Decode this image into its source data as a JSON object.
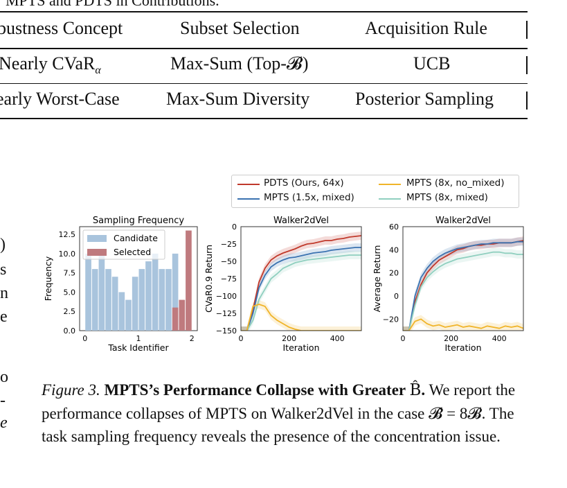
{
  "top_caption": "MPTS and PDTS in Contributions.",
  "table": {
    "headers": [
      "bustness Concept",
      "Subset Selection",
      "Acquisition Rule"
    ],
    "rows": [
      [
        "Nearly CVaR",
        "Max-Sum (Top-𝓑)",
        "UCB"
      ],
      [
        "early Worst-Case",
        "Max-Sum Diversity",
        "Posterior Sampling"
      ]
    ],
    "alpha": "α"
  },
  "left_margin_chars": [
    ")",
    "s",
    "n",
    "e",
    "o",
    "-",
    "e"
  ],
  "legend": {
    "items": [
      {
        "label": "PDTS (Ours, 64x)",
        "color": "#c0392b"
      },
      {
        "label": "MPTS (8x, no_mixed)",
        "color": "#f0b429"
      },
      {
        "label": "MPTS (1.5x, mixed)",
        "color": "#3a72b0"
      },
      {
        "label": "MPTS (8x, mixed)",
        "color": "#8fcfbf"
      }
    ]
  },
  "chart_data": [
    {
      "type": "bar",
      "title": "Sampling Frequency",
      "xlabel": "Task Identifier",
      "ylabel": "Frequency",
      "xlim": [
        0,
        2
      ],
      "ylim": [
        0,
        13
      ],
      "xticks": [
        "0",
        "1",
        "2"
      ],
      "yticks": [
        "0.0",
        "2.5",
        "5.0",
        "7.5",
        "10.0",
        "12.5"
      ],
      "legend": [
        "Candidate",
        "Selected"
      ],
      "legend_position": "top-left",
      "colors": {
        "candidate": "#a9c4dd",
        "selected": "#bf7a7e"
      },
      "candidate_values": [
        10,
        8,
        10,
        8,
        7,
        5,
        4,
        7,
        8,
        9,
        10,
        8,
        8,
        10,
        0,
        0
      ],
      "selected_values": [
        0,
        0,
        0,
        0,
        0,
        0,
        0,
        0,
        0,
        0,
        0,
        0,
        0,
        3,
        4,
        13
      ]
    },
    {
      "type": "line",
      "title": "Walker2dVel",
      "xlabel": "Iteration",
      "ylabel": "CVaR0.9 Return",
      "xlim": [
        0,
        500
      ],
      "ylim": [
        -150,
        0
      ],
      "xticks": [
        "0",
        "200",
        "400"
      ],
      "yticks": [
        "0",
        "−25",
        "−50",
        "−75",
        "−100",
        "−125",
        "−150"
      ],
      "x": [
        0,
        25,
        50,
        75,
        100,
        125,
        150,
        175,
        200,
        225,
        250,
        275,
        300,
        325,
        350,
        375,
        400,
        425,
        450,
        475,
        500
      ],
      "series": [
        {
          "name": "PDTS (Ours, 64x)",
          "values": [
            -150,
            -150,
            -120,
            -80,
            -60,
            -48,
            -42,
            -38,
            -35,
            -32,
            -28,
            -25,
            -24,
            -22,
            -20,
            -20,
            -18,
            -17,
            -15,
            -14,
            -13
          ]
        },
        {
          "name": "MPTS (1.5x, mixed)",
          "values": [
            -150,
            -150,
            -125,
            -88,
            -70,
            -58,
            -52,
            -48,
            -45,
            -44,
            -42,
            -40,
            -38,
            -37,
            -36,
            -34,
            -33,
            -32,
            -31,
            -30,
            -30
          ]
        },
        {
          "name": "MPTS (8x, mixed)",
          "values": [
            -150,
            -150,
            -135,
            -105,
            -90,
            -75,
            -68,
            -60,
            -56,
            -52,
            -50,
            -48,
            -47,
            -46,
            -45,
            -44,
            -43,
            -42,
            -41,
            -41,
            -41
          ]
        },
        {
          "name": "MPTS (8x, no_mixed)",
          "values": [
            -150,
            -150,
            -115,
            -112,
            -115,
            -128,
            -135,
            -140,
            -145,
            -148,
            -150,
            -150,
            -150,
            -150,
            -150,
            -150,
            -150,
            -150,
            -150,
            -150,
            -150
          ]
        }
      ]
    },
    {
      "type": "line",
      "title": "Walker2dVel",
      "xlabel": "Iteration",
      "ylabel": "Average Return",
      "xlim": [
        0,
        500
      ],
      "ylim": [
        -30,
        60
      ],
      "xticks": [
        "0",
        "200",
        "400"
      ],
      "yticks": [
        "60",
        "40",
        "20",
        "0",
        "−20"
      ],
      "x": [
        0,
        25,
        50,
        75,
        100,
        125,
        150,
        175,
        200,
        225,
        250,
        275,
        300,
        325,
        350,
        375,
        400,
        425,
        450,
        475,
        500
      ],
      "series": [
        {
          "name": "PDTS (Ours, 64x)",
          "values": [
            -30,
            -30,
            -5,
            10,
            20,
            26,
            31,
            34,
            37,
            40,
            41,
            43,
            44,
            44,
            45,
            45,
            46,
            46,
            46,
            47,
            48
          ]
        },
        {
          "name": "MPTS (1.5x, mixed)",
          "values": [
            -30,
            -30,
            0,
            16,
            24,
            30,
            34,
            37,
            39,
            41,
            42,
            43,
            44,
            45,
            45,
            46,
            46,
            46,
            46,
            47,
            47
          ]
        },
        {
          "name": "MPTS (8x, mixed)",
          "values": [
            -30,
            -30,
            -8,
            8,
            16,
            21,
            25,
            28,
            30,
            32,
            33,
            34,
            35,
            36,
            37,
            38,
            38,
            37,
            37,
            36,
            36
          ]
        },
        {
          "name": "MPTS (8x, no_mixed)",
          "values": [
            -30,
            -30,
            -22,
            -20,
            -24,
            -26,
            -25,
            -27,
            -26,
            -25,
            -27,
            -26,
            -27,
            -28,
            -26,
            -27,
            -28,
            -26,
            -27,
            -26,
            -28
          ]
        }
      ]
    }
  ],
  "figure_caption": {
    "label": "Figure 3.",
    "bold": "MPTS’s Performance Collapse with Greater ",
    "bold_symbol": "B̂",
    "bold_end": ".",
    "text": "We report the performance collapses of MPTS on Walker2dVel in the case 𝓑̂ = 8𝓑. The task sampling frequency reveals the presence of the concentration issue."
  }
}
